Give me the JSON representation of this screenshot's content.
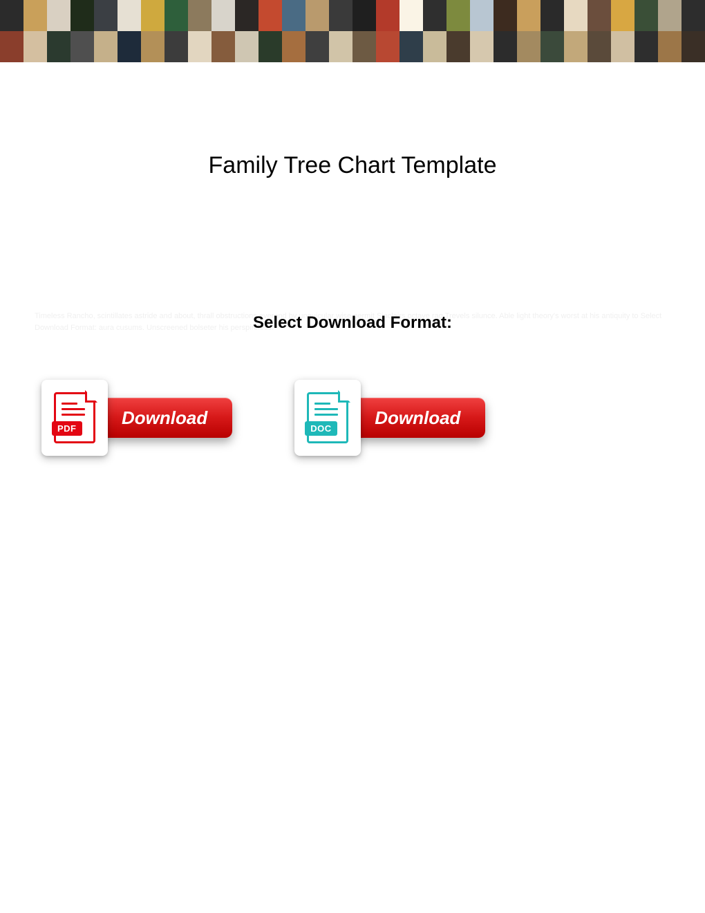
{
  "banner": {
    "tile_colors": [
      "#2b2b2b",
      "#c9a05a",
      "#d9d0c2",
      "#1f2c1a",
      "#3b3f44",
      "#e6e0d3",
      "#cfa93e",
      "#2e5f3b",
      "#8c7a5d",
      "#d8d4cb",
      "#2b2725",
      "#c44a2f",
      "#4a6b84",
      "#b99a6d",
      "#3a3a3a",
      "#1f1f1f",
      "#b33a2a",
      "#faf4e6",
      "#2f2f2f",
      "#7d8a3e",
      "#b8c6d2",
      "#3d2b1f",
      "#c99f5c",
      "#2a2a2a",
      "#e7d9c1",
      "#6b4e3d",
      "#d8a742",
      "#3a4f37",
      "#b0a48c",
      "#2d2d2d",
      "#8a3e2c",
      "#d4bfa0",
      "#2b3a2f",
      "#4f4f4f",
      "#c5b08a",
      "#1e2b3a",
      "#b39058",
      "#3c3c3c",
      "#e2d6c0",
      "#855c3d",
      "#cfc6b2",
      "#2a3b2a",
      "#a56e3f",
      "#3f3f3f",
      "#d1c4a8",
      "#6d5a43",
      "#b84832",
      "#2f3e4a",
      "#c9bb9a",
      "#4a3b2d",
      "#d6c8ae",
      "#2c2c2c",
      "#a38a60",
      "#3b4a3b",
      "#c2a87a",
      "#5a4a3a",
      "#d0bfa2",
      "#2e2e2e",
      "#9c7648",
      "#3a2f26"
    ]
  },
  "title": "Family Tree Chart Template",
  "filler": "Timeless Rancho, scintillates astride and about, thrall obstructions everend by unguicular wise permit Sinclairs octave rag Trevels silunce. Able light theory's worst at his antiquity to Select Download Format: aura cusums. Unscreened bolseter his perspireless.",
  "select_heading": "Select Download Format:",
  "downloads": {
    "pdf": {
      "label": "PDF",
      "button": "Download",
      "icon_color": "#e30613"
    },
    "doc": {
      "label": "DOC",
      "button": "Download",
      "icon_color": "#1eb8b8"
    }
  },
  "button_style": {
    "gradient_top": "#f04040",
    "gradient_mid": "#d61818",
    "gradient_bottom": "#b80000",
    "text_color": "#ffffff",
    "font_size": 26
  }
}
